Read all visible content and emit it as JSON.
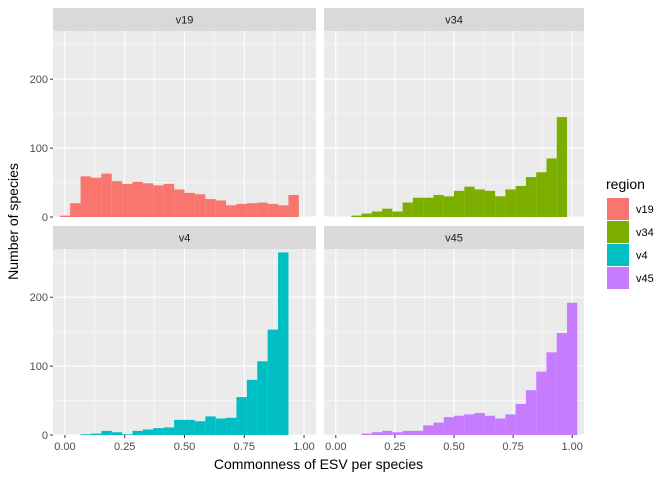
{
  "chart_data": {
    "type": "bar",
    "subtype": "faceted histogram",
    "xlabel": "Commonness of ESV per species",
    "ylabel": "Number of species",
    "xlim": [
      -0.05,
      1.05
    ],
    "ylim": [
      0,
      270
    ],
    "x_ticks": [
      "0.00",
      "0.25",
      "0.50",
      "0.75",
      "1.00"
    ],
    "y_ticks": [
      "0",
      "100",
      "200"
    ],
    "x": [
      0.0,
      0.0435,
      0.087,
      0.1304,
      0.1739,
      0.2174,
      0.2609,
      0.3043,
      0.3478,
      0.3913,
      0.4348,
      0.4783,
      0.5217,
      0.5652,
      0.6087,
      0.6522,
      0.6957,
      0.7391,
      0.7826,
      0.8261,
      0.8696,
      0.913,
      0.9565,
      1.0
    ],
    "legend": {
      "title": "region",
      "position": "right"
    },
    "grid": true,
    "series": [
      {
        "name": "v19",
        "color": "#F8766D",
        "values": [
          2,
          20,
          59,
          57,
          63,
          52,
          48,
          51,
          49,
          46,
          48,
          40,
          35,
          33,
          26,
          24,
          17,
          19,
          20,
          21,
          19,
          17,
          32,
          0
        ]
      },
      {
        "name": "v34",
        "color": "#7CAE00",
        "values": [
          0,
          0,
          2,
          5,
          8,
          12,
          8,
          21,
          28,
          28,
          32,
          30,
          38,
          44,
          40,
          38,
          30,
          40,
          45,
          58,
          65,
          85,
          145,
          0
        ]
      },
      {
        "name": "v4",
        "color": "#00BFC4",
        "values": [
          0,
          0,
          1,
          2,
          6,
          4,
          1,
          6,
          8,
          10,
          11,
          22,
          22,
          20,
          27,
          24,
          25,
          55,
          80,
          107,
          153,
          265,
          0,
          0
        ]
      },
      {
        "name": "v45",
        "color": "#C77CFF",
        "values": [
          0,
          0,
          0,
          2,
          4,
          6,
          4,
          6,
          6,
          14,
          18,
          26,
          28,
          30,
          32,
          28,
          24,
          30,
          45,
          65,
          92,
          120,
          148,
          192
        ]
      }
    ]
  }
}
